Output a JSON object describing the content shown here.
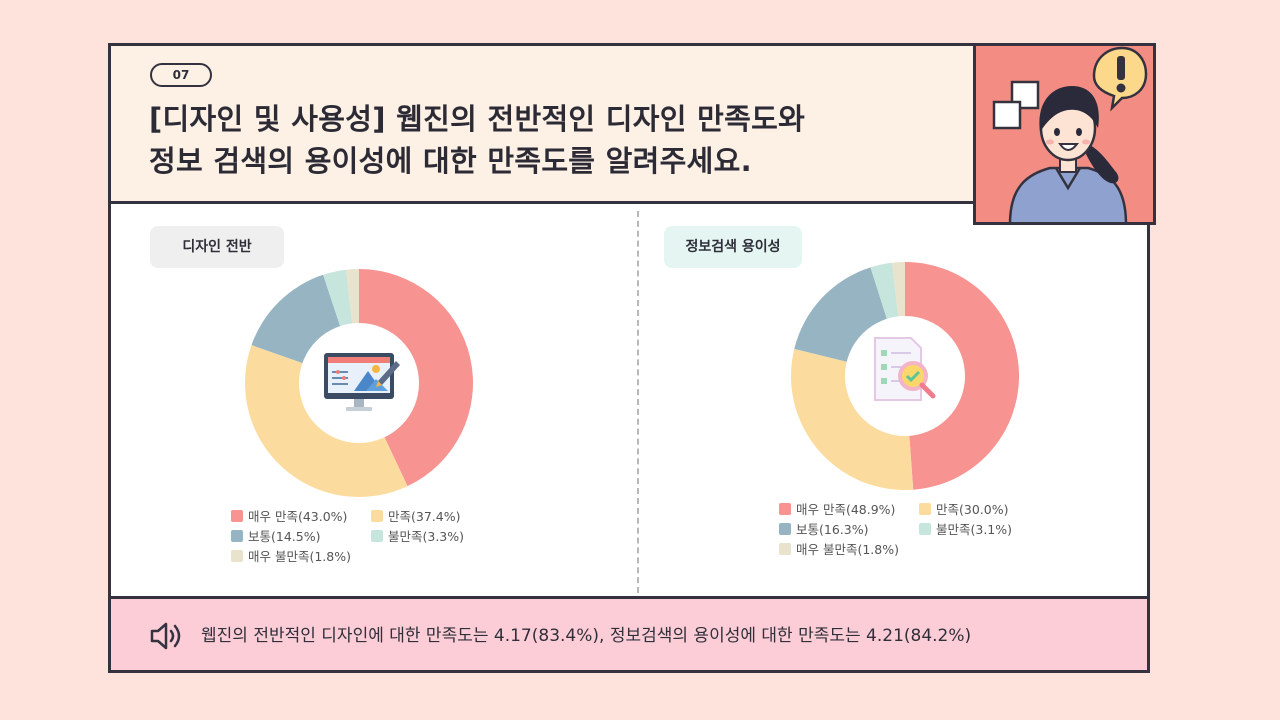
{
  "question": {
    "number": "07",
    "title_line1": "[디자인 및 사용성] 웹진의 전반적인 디자인 만족도와",
    "title_line2": "정보 검색의 용이성에 대한 만족도를 알려주세요."
  },
  "colors": {
    "very_satisfied": "#f79390",
    "satisfied": "#fcdc9e",
    "normal": "#97b4c3",
    "dissatisfied": "#c6e6dd",
    "very_dissatisfied": "#e9e2cd"
  },
  "left_panel": {
    "tag": "디자인 전반",
    "center_icon": "design-monitor-icon"
  },
  "right_panel": {
    "tag": "정보검색 용이성",
    "center_icon": "document-search-icon"
  },
  "chart_data": [
    {
      "type": "pie",
      "title": "디자인 전반",
      "categories": [
        "매우 만족",
        "만족",
        "보통",
        "불만족",
        "매우 불만족"
      ],
      "values": [
        43.0,
        37.4,
        14.5,
        3.3,
        1.8
      ],
      "legend_labels": [
        "매우 만족(43.0%)",
        "만족(37.4%)",
        "보통(14.5%)",
        "불만족(3.3%)",
        "매우 불만족(1.8%)"
      ],
      "legend": "bottom"
    },
    {
      "type": "pie",
      "title": "정보검색 용이성",
      "categories": [
        "매우 만족",
        "만족",
        "보통",
        "불만족",
        "매우 불만족"
      ],
      "values": [
        48.9,
        30.0,
        16.3,
        3.1,
        1.8
      ],
      "legend_labels": [
        "매우 만족(48.9%)",
        "만족(30.0%)",
        "보통(16.3%)",
        "불만족(3.1%)",
        "매우 불만족(1.8%)"
      ],
      "legend": "bottom"
    }
  ],
  "footer": {
    "icon": "speaker-icon",
    "text": "웹진의 전반적인 디자인에 대한 만족도는 4.17(83.4%), 정보검색의 용이성에 대한 만족도는 4.21(84.2%)"
  }
}
